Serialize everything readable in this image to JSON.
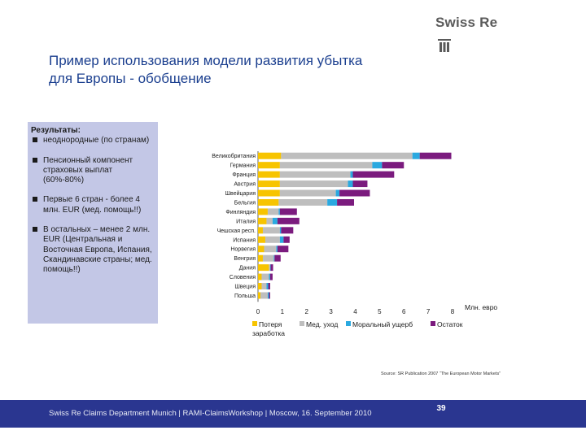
{
  "brand": {
    "logo_text": "Swiss Re"
  },
  "slide": {
    "title_line1": "Пример использования модели развития убытка",
    "title_line2": "для Европы - обобщение"
  },
  "sidebar": {
    "heading": "Результаты:",
    "items": [
      "неоднородные (по странам)",
      "Пенсионный компонент страховых выплат (60%-80%)",
      "Первые 6 стран - более 4 млн. EUR (мед. помощь!!)",
      "В остальных – менее 2 млн. EUR (Центральная и Восточная Европа, Испания, Скандинавские страны; мед. помощь!!)"
    ]
  },
  "chart_data": {
    "type": "bar",
    "orientation": "horizontal",
    "stacked": true,
    "categories": [
      "Великобритания",
      "Германия",
      "Франция",
      "Австрия",
      "Швейцария",
      "Бельгия",
      "Финляндия",
      "Италия",
      "Чешская респ.",
      "Испания",
      "Норвегия",
      "Венгрия",
      "Дания",
      "Словения",
      "Швеция",
      "Польша"
    ],
    "series": [
      {
        "name": "Потеря заработка",
        "color": "#f7c400",
        "values": [
          0.95,
          0.9,
          0.9,
          0.9,
          0.9,
          0.85,
          0.4,
          0.35,
          0.2,
          0.3,
          0.25,
          0.2,
          0.45,
          0.15,
          0.15,
          0.1
        ]
      },
      {
        "name": "Мед. уход",
        "color": "#bebebe",
        "values": [
          5.4,
          3.8,
          2.9,
          2.8,
          2.3,
          2.0,
          0.45,
          0.25,
          0.7,
          0.6,
          0.5,
          0.45,
          0.05,
          0.3,
          0.2,
          0.3
        ]
      },
      {
        "name": "Моральный ущерб",
        "color": "#2aa9e0",
        "values": [
          0.3,
          0.4,
          0.1,
          0.2,
          0.15,
          0.4,
          0.05,
          0.2,
          0.05,
          0.15,
          0.05,
          0.03,
          0.02,
          0.05,
          0.07,
          0.05
        ]
      },
      {
        "name": "Остаток",
        "color": "#7b1b7e",
        "values": [
          1.3,
          0.9,
          1.7,
          0.6,
          1.25,
          0.7,
          0.7,
          0.9,
          0.5,
          0.25,
          0.45,
          0.25,
          0.1,
          0.1,
          0.08,
          0.05
        ]
      }
    ],
    "xlim": [
      0,
      8
    ],
    "xticks": [
      "0",
      "1",
      "2",
      "3",
      "4",
      "5",
      "6",
      "7",
      "8"
    ],
    "xlabel": "Млн. евро",
    "legend": [
      "Потеря заработка",
      "Мед. уход",
      "Моральный ущерб",
      "Остаток"
    ],
    "legend_position": "bottom"
  },
  "source_note": "Source: SR Publication 2007 “The European Motor Markets”",
  "footer": {
    "text": "Swiss Re Claims Department Munich | RAMI-ClaimsWorkshop | Moscow, 16. September 2010",
    "page_number": "39"
  }
}
